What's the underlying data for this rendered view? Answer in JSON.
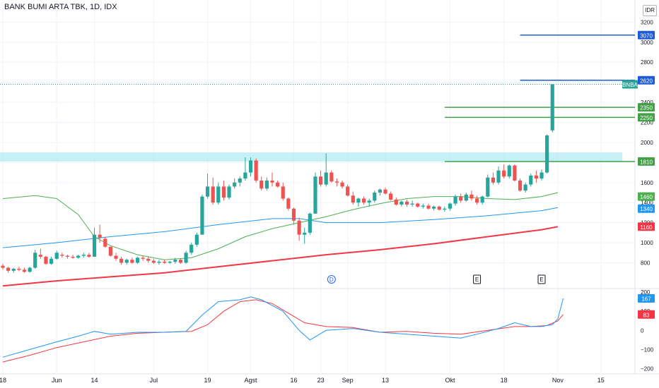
{
  "header": {
    "title": "BANK BUMI ARTA TBK, 1D, IDX",
    "currency": "IDR"
  },
  "chart_data": {
    "type": "candlestick",
    "price_axis": {
      "ticks": [
        800,
        1000,
        1200,
        1400,
        1600,
        1800,
        2000,
        2200,
        2400,
        2600,
        2800,
        3000,
        3200
      ],
      "ylim": [
        550,
        3350
      ]
    },
    "oscillator_axis": {
      "ticks": [
        200,
        100,
        0,
        -100,
        -200
      ],
      "ylim": [
        -220,
        215
      ]
    },
    "x_ticks": [
      {
        "label": "18",
        "bar": 0
      },
      {
        "label": "Jun",
        "bar": 10
      },
      {
        "label": "14",
        "bar": 17
      },
      {
        "label": "Jul",
        "bar": 28
      },
      {
        "label": "19",
        "bar": 38
      },
      {
        "label": "Agst",
        "bar": 46
      },
      {
        "label": "16",
        "bar": 54
      },
      {
        "label": "23",
        "bar": 59
      },
      {
        "label": "Sep",
        "bar": 64
      },
      {
        "label": "13",
        "bar": 71
      },
      {
        "label": "Okt",
        "bar": 83
      },
      {
        "label": "18",
        "bar": 93
      },
      {
        "label": "Nov",
        "bar": 103
      },
      {
        "label": "15",
        "bar": 111
      }
    ],
    "candles": [
      [
        770,
        790,
        730,
        750
      ],
      [
        750,
        760,
        700,
        720
      ],
      [
        720,
        750,
        700,
        740
      ],
      [
        740,
        760,
        715,
        730
      ],
      [
        730,
        750,
        700,
        710
      ],
      [
        710,
        760,
        700,
        750
      ],
      [
        750,
        930,
        740,
        900
      ],
      [
        880,
        940,
        840,
        860
      ],
      [
        860,
        870,
        780,
        790
      ],
      [
        790,
        860,
        780,
        840
      ],
      [
        840,
        920,
        830,
        900
      ],
      [
        880,
        900,
        850,
        870
      ],
      [
        870,
        880,
        840,
        860
      ],
      [
        860,
        880,
        840,
        850
      ],
      [
        850,
        880,
        840,
        870
      ],
      [
        870,
        900,
        850,
        880
      ],
      [
        880,
        900,
        850,
        860
      ],
      [
        860,
        1150,
        860,
        1080
      ],
      [
        1080,
        1180,
        1000,
        1050
      ],
      [
        1040,
        1060,
        950,
        960
      ],
      [
        960,
        960,
        860,
        870
      ],
      [
        870,
        900,
        820,
        840
      ],
      [
        840,
        860,
        780,
        800
      ],
      [
        800,
        840,
        780,
        830
      ],
      [
        830,
        850,
        790,
        800
      ],
      [
        800,
        860,
        790,
        850
      ],
      [
        850,
        870,
        820,
        840
      ],
      [
        840,
        860,
        800,
        820
      ],
      [
        820,
        840,
        790,
        800
      ],
      [
        800,
        830,
        780,
        810
      ],
      [
        810,
        830,
        790,
        800
      ],
      [
        800,
        820,
        790,
        810
      ],
      [
        810,
        850,
        790,
        830
      ],
      [
        830,
        840,
        790,
        800
      ],
      [
        800,
        920,
        790,
        900
      ],
      [
        900,
        1000,
        880,
        980
      ],
      [
        980,
        1100,
        960,
        1080
      ],
      [
        1080,
        1480,
        1080,
        1460
      ],
      [
        1460,
        1690,
        1440,
        1560
      ],
      [
        1560,
        1650,
        1380,
        1400
      ],
      [
        1400,
        1600,
        1380,
        1560
      ],
      [
        1560,
        1620,
        1420,
        1450
      ],
      [
        1450,
        1580,
        1430,
        1560
      ],
      [
        1560,
        1640,
        1540,
        1600
      ],
      [
        1600,
        1660,
        1560,
        1640
      ],
      [
        1640,
        1850,
        1620,
        1700
      ],
      [
        1700,
        1850,
        1660,
        1820
      ],
      [
        1820,
        1840,
        1600,
        1620
      ],
      [
        1620,
        1660,
        1520,
        1540
      ],
      [
        1540,
        1650,
        1520,
        1620
      ],
      [
        1620,
        1700,
        1560,
        1600
      ],
      [
        1600,
        1620,
        1550,
        1560
      ],
      [
        1560,
        1600,
        1420,
        1440
      ],
      [
        1440,
        1450,
        1320,
        1340
      ],
      [
        1340,
        1350,
        1180,
        1220
      ],
      [
        1220,
        1250,
        1020,
        1080
      ],
      [
        1080,
        1150,
        990,
        1100
      ],
      [
        1100,
        1300,
        1080,
        1290
      ],
      [
        1290,
        1700,
        1290,
        1660
      ],
      [
        1660,
        1720,
        1560,
        1580
      ],
      [
        1580,
        1890,
        1560,
        1700
      ],
      [
        1700,
        1720,
        1600,
        1610
      ],
      [
        1610,
        1640,
        1560,
        1600
      ],
      [
        1600,
        1620,
        1540,
        1560
      ],
      [
        1560,
        1580,
        1460,
        1470
      ],
      [
        1470,
        1510,
        1380,
        1400
      ],
      [
        1400,
        1450,
        1360,
        1440
      ],
      [
        1440,
        1460,
        1380,
        1400
      ],
      [
        1400,
        1440,
        1360,
        1420
      ],
      [
        1420,
        1520,
        1400,
        1500
      ],
      [
        1500,
        1540,
        1470,
        1530
      ],
      [
        1530,
        1550,
        1480,
        1490
      ],
      [
        1490,
        1510,
        1420,
        1430
      ],
      [
        1430,
        1450,
        1370,
        1380
      ],
      [
        1380,
        1420,
        1360,
        1410
      ],
      [
        1410,
        1430,
        1360,
        1380
      ],
      [
        1380,
        1420,
        1360,
        1390
      ],
      [
        1390,
        1400,
        1350,
        1360
      ],
      [
        1360,
        1390,
        1340,
        1370
      ],
      [
        1370,
        1390,
        1330,
        1340
      ],
      [
        1340,
        1370,
        1320,
        1360
      ],
      [
        1360,
        1370,
        1320,
        1330
      ],
      [
        1330,
        1360,
        1310,
        1340
      ],
      [
        1340,
        1400,
        1320,
        1390
      ],
      [
        1390,
        1480,
        1370,
        1460
      ],
      [
        1460,
        1490,
        1400,
        1420
      ],
      [
        1420,
        1500,
        1410,
        1480
      ],
      [
        1480,
        1520,
        1420,
        1440
      ],
      [
        1440,
        1470,
        1380,
        1400
      ],
      [
        1400,
        1470,
        1380,
        1460
      ],
      [
        1460,
        1680,
        1450,
        1650
      ],
      [
        1650,
        1700,
        1580,
        1600
      ],
      [
        1600,
        1760,
        1580,
        1720
      ],
      [
        1720,
        1780,
        1640,
        1660
      ],
      [
        1660,
        1780,
        1640,
        1770
      ],
      [
        1770,
        1780,
        1610,
        1620
      ],
      [
        1620,
        1640,
        1510,
        1520
      ],
      [
        1520,
        1600,
        1500,
        1580
      ],
      [
        1580,
        1690,
        1560,
        1670
      ],
      [
        1670,
        1720,
        1600,
        1640
      ],
      [
        1640,
        1730,
        1620,
        1700
      ],
      [
        1700,
        2080,
        1690,
        2070
      ],
      [
        2120,
        2580,
        2100,
        2580
      ]
    ],
    "ma_green": {
      "color": "#4caf50",
      "points": [
        [
          0,
          1440
        ],
        [
          6,
          1470
        ],
        [
          10,
          1440
        ],
        [
          14,
          1280
        ],
        [
          17,
          1060
        ],
        [
          20,
          970
        ],
        [
          25,
          880
        ],
        [
          30,
          830
        ],
        [
          35,
          850
        ],
        [
          40,
          940
        ],
        [
          45,
          1060
        ],
        [
          50,
          1140
        ],
        [
          55,
          1200
        ],
        [
          60,
          1260
        ],
        [
          65,
          1330
        ],
        [
          70,
          1390
        ],
        [
          75,
          1440
        ],
        [
          80,
          1460
        ],
        [
          85,
          1460
        ],
        [
          90,
          1440
        ],
        [
          95,
          1430
        ],
        [
          100,
          1460
        ],
        [
          103,
          1500
        ]
      ]
    },
    "ma_blue": {
      "color": "#2196f3",
      "points": [
        [
          0,
          950
        ],
        [
          10,
          1000
        ],
        [
          20,
          1060
        ],
        [
          30,
          1110
        ],
        [
          40,
          1180
        ],
        [
          50,
          1240
        ],
        [
          55,
          1240
        ],
        [
          60,
          1200
        ],
        [
          70,
          1200
        ],
        [
          80,
          1230
        ],
        [
          90,
          1270
        ],
        [
          100,
          1320
        ],
        [
          103,
          1350
        ]
      ]
    },
    "ma_red": {
      "color": "#f23645",
      "points": [
        [
          0,
          570
        ],
        [
          10,
          620
        ],
        [
          20,
          660
        ],
        [
          30,
          700
        ],
        [
          40,
          760
        ],
        [
          50,
          820
        ],
        [
          60,
          880
        ],
        [
          70,
          930
        ],
        [
          80,
          990
        ],
        [
          90,
          1060
        ],
        [
          100,
          1130
        ],
        [
          103,
          1160
        ]
      ]
    },
    "resistance_zone": {
      "from": 1810,
      "to": 1900,
      "color": "#b2ebf2",
      "x_end_bar": 115
    },
    "horizontal_lines": [
      {
        "value": 3070,
        "color": "#1e5bd6",
        "from_bar": 96
      },
      {
        "value": 2620,
        "color": "#1e5bd6",
        "from_bar": 96
      },
      {
        "value": 2350,
        "color": "#43a047",
        "from_bar": 82
      },
      {
        "value": 2250,
        "color": "#43a047",
        "from_bar": 82
      },
      {
        "value": 1810,
        "color": "#43a047",
        "from_bar": 82
      }
    ],
    "last_price_line": {
      "value": 2580,
      "color": "#26a69a"
    },
    "price_labels": [
      {
        "text": "3070",
        "value": 3070,
        "color": "#1e5bd6"
      },
      {
        "text": "2620",
        "value": 2620,
        "color": "#1e5bd6"
      },
      {
        "text": "BNBA",
        "value": 2580,
        "color": "#26a69a",
        "left": true
      },
      {
        "text": "2350",
        "value": 2350,
        "color": "#43a047"
      },
      {
        "text": "2250",
        "value": 2250,
        "color": "#43a047"
      },
      {
        "text": "1810",
        "value": 1810,
        "color": "#43a047"
      },
      {
        "text": "1460",
        "value": 1460,
        "color": "#4caf50"
      },
      {
        "text": "1340",
        "value": 1340,
        "color": "#2196f3"
      },
      {
        "text": "1160",
        "value": 1160,
        "color": "#f23645"
      }
    ],
    "events": [
      {
        "text": "D",
        "bar": 61,
        "kind": "dividend"
      },
      {
        "text": "E",
        "bar": 88,
        "kind": "earnings"
      },
      {
        "text": "E",
        "bar": 100,
        "kind": "earnings"
      }
    ],
    "oscillator": {
      "blue": {
        "color": "#2196f3",
        "points": [
          [
            0,
            -140
          ],
          [
            5,
            -100
          ],
          [
            10,
            -60
          ],
          [
            14,
            -30
          ],
          [
            17,
            -5
          ],
          [
            20,
            -20
          ],
          [
            25,
            -10
          ],
          [
            30,
            -10
          ],
          [
            34,
            -5
          ],
          [
            37,
            80
          ],
          [
            40,
            150
          ],
          [
            44,
            160
          ],
          [
            46,
            175
          ],
          [
            48,
            160
          ],
          [
            52,
            100
          ],
          [
            55,
            0
          ],
          [
            57,
            -50
          ],
          [
            60,
            0
          ],
          [
            65,
            10
          ],
          [
            70,
            -10
          ],
          [
            75,
            -20
          ],
          [
            80,
            -30
          ],
          [
            85,
            -40
          ],
          [
            88,
            -20
          ],
          [
            92,
            10
          ],
          [
            95,
            40
          ],
          [
            98,
            20
          ],
          [
            100,
            20
          ],
          [
            102,
            30
          ],
          [
            103,
            60
          ],
          [
            104,
            167
          ]
        ]
      },
      "red": {
        "color": "#f23645",
        "points": [
          [
            0,
            -165
          ],
          [
            5,
            -130
          ],
          [
            10,
            -90
          ],
          [
            15,
            -60
          ],
          [
            20,
            -30
          ],
          [
            25,
            -15
          ],
          [
            30,
            -10
          ],
          [
            35,
            -5
          ],
          [
            38,
            30
          ],
          [
            41,
            100
          ],
          [
            44,
            150
          ],
          [
            47,
            160
          ],
          [
            50,
            140
          ],
          [
            53,
            90
          ],
          [
            56,
            40
          ],
          [
            60,
            20
          ],
          [
            65,
            15
          ],
          [
            70,
            -10
          ],
          [
            75,
            -5
          ],
          [
            80,
            -15
          ],
          [
            85,
            -20
          ],
          [
            90,
            0
          ],
          [
            95,
            20
          ],
          [
            98,
            20
          ],
          [
            101,
            25
          ],
          [
            103,
            50
          ],
          [
            104,
            83
          ]
        ]
      },
      "labels": [
        {
          "text": "167",
          "value": 167,
          "color": "#2196f3"
        },
        {
          "text": "83",
          "value": 83,
          "color": "#f23645"
        }
      ]
    }
  }
}
